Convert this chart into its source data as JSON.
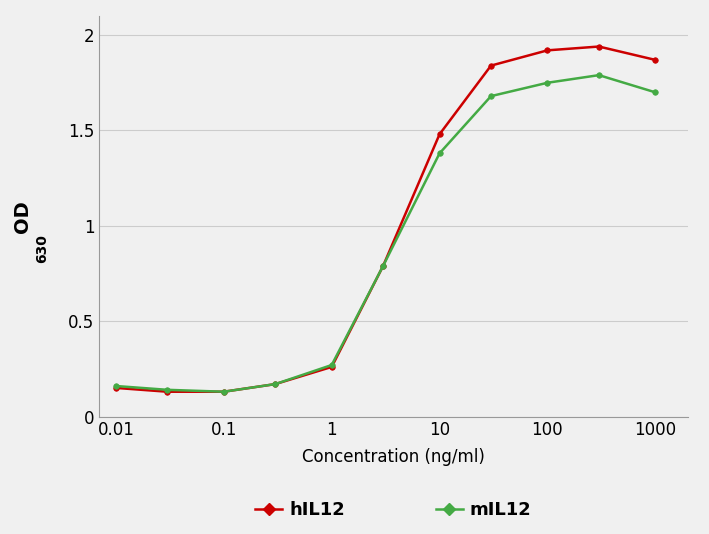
{
  "x_values": [
    0.01,
    0.03,
    0.1,
    0.3,
    1,
    3,
    10,
    30,
    100,
    300,
    1000
  ],
  "hIL12": [
    0.15,
    0.13,
    0.13,
    0.17,
    0.26,
    0.79,
    1.48,
    1.84,
    1.92,
    1.94,
    1.87
  ],
  "mIL12": [
    0.16,
    0.14,
    0.13,
    0.17,
    0.27,
    0.79,
    1.38,
    1.68,
    1.75,
    1.79,
    1.7
  ],
  "hIL12_color": "#cc0000",
  "mIL12_color": "#44aa44",
  "xlabel": "Concentration (ng/ml)",
  "legend_hIL12": "hIL12",
  "legend_mIL12": "mIL12",
  "ylim": [
    0,
    2.1
  ],
  "yticks": [
    0,
    0.5,
    1,
    1.5,
    2
  ],
  "xticks": [
    0.01,
    0.1,
    1,
    10,
    100,
    1000
  ],
  "xtick_labels": [
    "0.01",
    "0.1",
    "1",
    "10",
    "100",
    "1000"
  ],
  "background_color": "#f0f0f0",
  "plot_bg_color": "#f0f0f0",
  "grid_color": "#cccccc",
  "spine_color": "#999999"
}
